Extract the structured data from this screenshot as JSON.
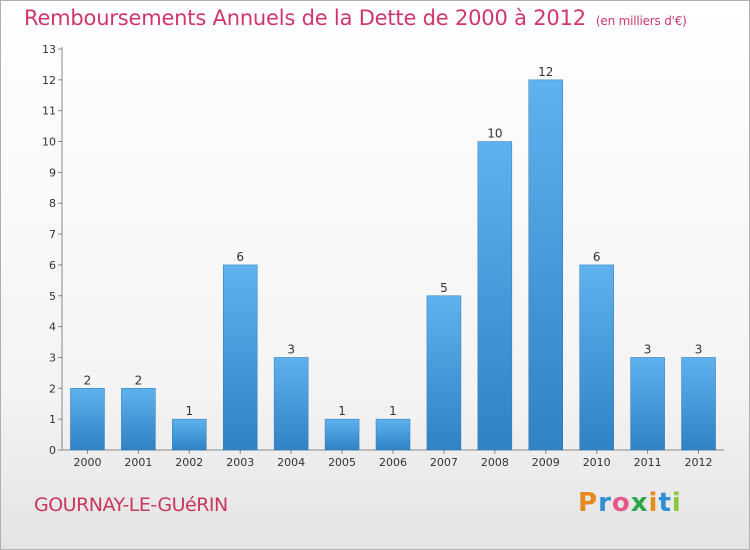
{
  "header": {
    "title": "Remboursements Annuels de la Dette de 2000 à 2012",
    "unit": "(en milliers d'€)"
  },
  "footer": {
    "commune": "GOURNAY-LE-GUéRIN",
    "logo_letters": [
      "P",
      "r",
      "o",
      "x",
      "i",
      "t",
      "i"
    ]
  },
  "colors": {
    "bar": "#4ea6e6",
    "title": "#d0366a"
  },
  "chart_data": {
    "type": "bar",
    "title": "Remboursements Annuels de la Dette de 2000 à 2012",
    "ylabel": "en milliers d'€",
    "xlabel": "",
    "categories": [
      "2000",
      "2001",
      "2002",
      "2003",
      "2004",
      "2005",
      "2006",
      "2007",
      "2008",
      "2009",
      "2010",
      "2011",
      "2012"
    ],
    "values": [
      2,
      2,
      1,
      6,
      3,
      1,
      1,
      5,
      10,
      12,
      6,
      3,
      3
    ],
    "ylim": [
      0,
      13
    ],
    "yticks": [
      0,
      1,
      2,
      3,
      4,
      5,
      6,
      7,
      8,
      9,
      10,
      11,
      12,
      13
    ],
    "grid": false
  }
}
